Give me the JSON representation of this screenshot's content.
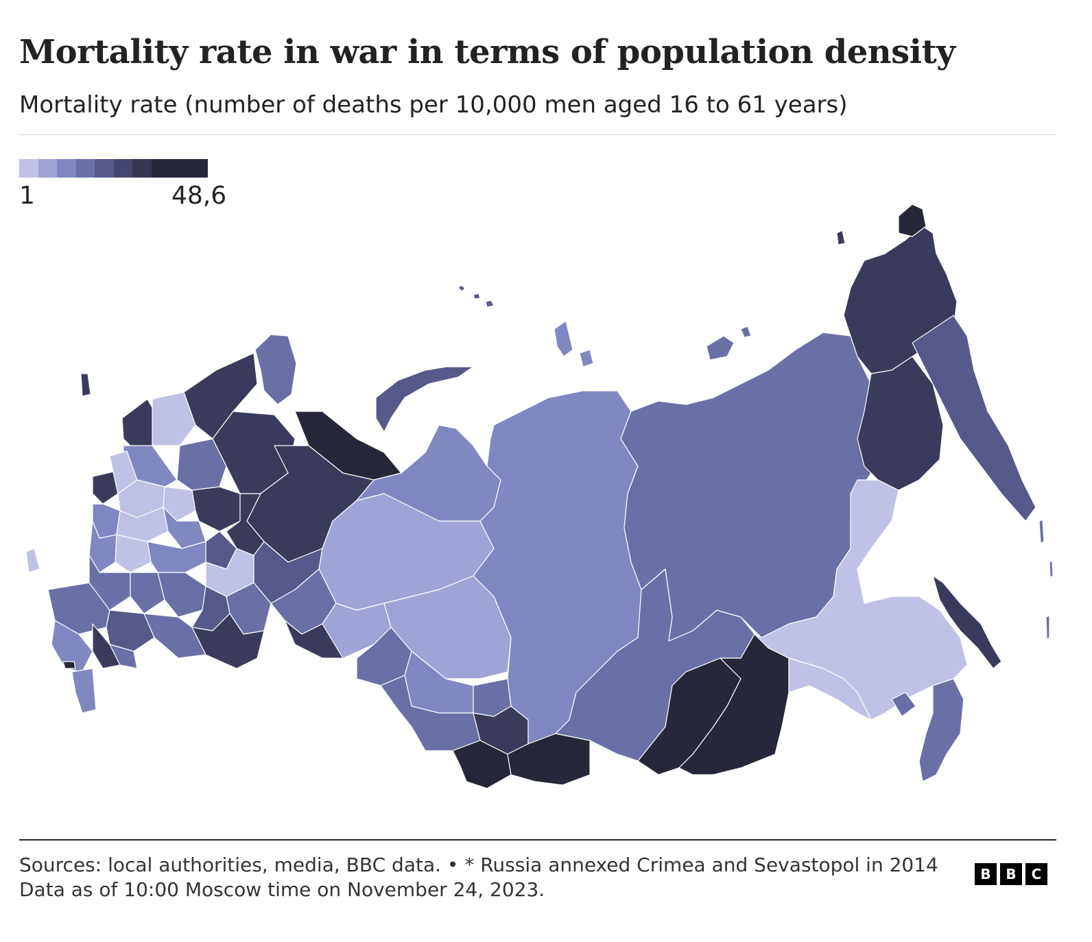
{
  "header": {
    "title": "Mortality rate in war in terms of population density",
    "subtitle": "Mortality rate (number of deaths per 10,000 men aged 16 to 61 years)"
  },
  "legend": {
    "min_label": "1",
    "max_label": "48,6",
    "min_value": 1,
    "max_value": 48.6,
    "color_steps": [
      "#c0c1e6",
      "#9fa3d5",
      "#8187c1",
      "#6a70a6",
      "#56598a",
      "#45466f",
      "#353553",
      "#262839",
      "#262839",
      "#262839"
    ]
  },
  "map": {
    "region_colors": {
      "lightest": "#c0c1e6",
      "light": "#9fa3d5",
      "mid_light": "#8187c1",
      "mid": "#6a70a6",
      "mid_dark": "#56598a",
      "dark": "#3a3b5c",
      "darkest": "#262839"
    }
  },
  "footer": {
    "note": "Sources: local authorities, media, BBC data. • * Russia annexed Crimea and Sevastopol in 2014 Data as of 10:00 Moscow time on November 24, 2023.",
    "logo_letters": [
      "B",
      "B",
      "C"
    ]
  }
}
